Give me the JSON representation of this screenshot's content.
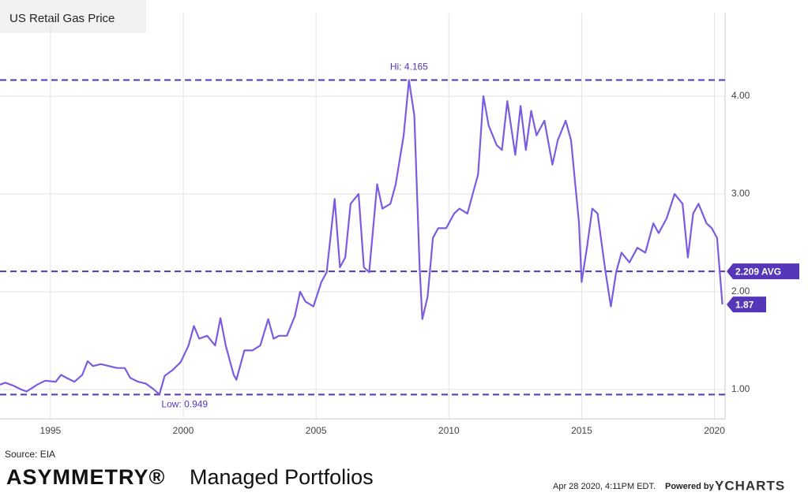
{
  "chart_data": {
    "type": "line",
    "title": "US Retail Gas Price",
    "x": [
      1993.1,
      1993.3,
      1993.6,
      1993.9,
      1994.1,
      1994.5,
      1994.8,
      1995.2,
      1995.4,
      1995.6,
      1995.9,
      1996.2,
      1996.4,
      1996.6,
      1996.9,
      1997.2,
      1997.5,
      1997.8,
      1998.0,
      1998.3,
      1998.6,
      1998.9,
      1999.1,
      1999.3,
      1999.6,
      1999.9,
      2000.2,
      2000.4,
      2000.6,
      2000.9,
      2001.2,
      2001.4,
      2001.6,
      2001.9,
      2002.0,
      2002.3,
      2002.6,
      2002.9,
      2003.2,
      2003.4,
      2003.6,
      2003.9,
      2004.2,
      2004.4,
      2004.6,
      2004.9,
      2005.2,
      2005.4,
      2005.7,
      2005.9,
      2006.1,
      2006.3,
      2006.6,
      2006.8,
      2007.0,
      2007.3,
      2007.5,
      2007.8,
      2008.0,
      2008.3,
      2008.5,
      2008.7,
      2008.9,
      2009.0,
      2009.2,
      2009.4,
      2009.6,
      2009.9,
      2010.2,
      2010.4,
      2010.7,
      2010.9,
      2011.1,
      2011.3,
      2011.5,
      2011.8,
      2012.0,
      2012.2,
      2012.5,
      2012.7,
      2012.9,
      2013.1,
      2013.3,
      2013.6,
      2013.9,
      2014.1,
      2014.4,
      2014.6,
      2014.9,
      2015.0,
      2015.2,
      2015.4,
      2015.6,
      2015.9,
      2016.1,
      2016.3,
      2016.5,
      2016.8,
      2017.1,
      2017.4,
      2017.7,
      2017.9,
      2018.2,
      2018.5,
      2018.8,
      2019.0,
      2019.2,
      2019.4,
      2019.7,
      2019.9,
      2020.1,
      2020.3
    ],
    "values": [
      1.05,
      1.07,
      1.04,
      1.0,
      0.98,
      1.05,
      1.09,
      1.08,
      1.15,
      1.12,
      1.08,
      1.15,
      1.29,
      1.24,
      1.26,
      1.24,
      1.22,
      1.22,
      1.12,
      1.08,
      1.06,
      1.0,
      0.949,
      1.14,
      1.2,
      1.28,
      1.45,
      1.65,
      1.52,
      1.55,
      1.45,
      1.73,
      1.45,
      1.15,
      1.1,
      1.4,
      1.4,
      1.45,
      1.72,
      1.52,
      1.55,
      1.55,
      1.75,
      2.0,
      1.9,
      1.85,
      2.1,
      2.2,
      2.95,
      2.25,
      2.35,
      2.9,
      3.0,
      2.25,
      2.2,
      3.1,
      2.85,
      2.9,
      3.1,
      3.6,
      4.165,
      3.8,
      2.25,
      1.72,
      1.95,
      2.55,
      2.65,
      2.65,
      2.8,
      2.85,
      2.8,
      3.0,
      3.2,
      4.0,
      3.7,
      3.5,
      3.45,
      3.95,
      3.4,
      3.9,
      3.45,
      3.85,
      3.6,
      3.75,
      3.3,
      3.55,
      3.75,
      3.55,
      2.7,
      2.1,
      2.45,
      2.85,
      2.8,
      2.2,
      1.85,
      2.2,
      2.4,
      2.3,
      2.45,
      2.4,
      2.7,
      2.6,
      2.75,
      3.0,
      2.9,
      2.35,
      2.8,
      2.9,
      2.7,
      2.65,
      2.55,
      1.87
    ],
    "color": "#7b5ce0",
    "xlim": [
      1993.1,
      2020.4
    ],
    "xticks": [
      1995,
      2000,
      2005,
      2010,
      2015,
      2020
    ],
    "ylim": [
      0.7,
      4.85
    ],
    "yticks": [
      {
        "value": 1,
        "label": "1.00"
      },
      {
        "value": 2,
        "label": "2.00"
      },
      {
        "value": 3,
        "label": "3.00"
      },
      {
        "value": 4,
        "label": "4.00"
      }
    ],
    "grid": true,
    "high": {
      "value": 4.165,
      "label": "Hi: 4.165",
      "x": 2008.5
    },
    "low": {
      "value": 0.949,
      "label": "Low: 0.949",
      "x": 1999.1
    },
    "average": {
      "value": 2.209,
      "label": "2.209 AVG"
    },
    "last": {
      "value": 1.87,
      "label": "1.87"
    },
    "source": "Source: EIA",
    "brand": "ASYMMETRY®",
    "brand_sub": "Managed Portfolios",
    "timestamp": "Apr 28 2020, 4:11PM EDT.",
    "powered_by": "Powered by",
    "provider": "YCHARTS"
  }
}
